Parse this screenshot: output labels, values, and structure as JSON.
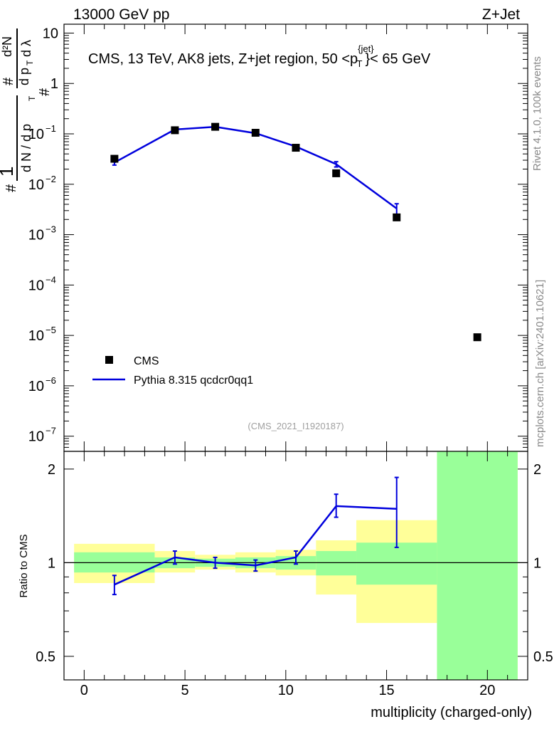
{
  "header": {
    "energy_label": "13000 GeV pp",
    "process_label": "Z+Jet"
  },
  "side_labels": {
    "rivet": "Rivet 4.1.0,  100k events",
    "mcplots": "mcplots.cern.ch [arXiv:2401.10621]"
  },
  "reference_label": "(CMS_2021_I1920187)",
  "colors": {
    "data": "#000000",
    "mc": "#0000dd",
    "band_inner": "#99ff99",
    "band_outer": "#ffff99"
  },
  "chart_data": [
    {
      "type": "scatter",
      "panel": "main",
      "title": {
        "prefix": "CMS, 13 TeV, AK8 jets, Z+jet region, 50 <p",
        "sup": "{jet}",
        "sub": "T",
        "suffix": "}< 65 GeV"
      },
      "ylabel": "1/(dN/dpT) d²N/dpT dλ",
      "ylabel_parts": {
        "one": "1",
        "hash": "#",
        "dN": "d N / d p",
        "T": "T",
        "d2N": "d²N",
        "dpT": "d p",
        "dl": "d λ"
      },
      "yscale": "log",
      "ylim": [
        5e-08,
        15
      ],
      "xlim": [
        -1,
        22
      ],
      "yticks": [
        {
          "v": 10,
          "label": "10"
        },
        {
          "v": 1,
          "label": "1"
        },
        {
          "v": 0.1,
          "label": "10",
          "exp": "−1"
        },
        {
          "v": 0.01,
          "label": "10",
          "exp": "−2"
        },
        {
          "v": 0.001,
          "label": "10",
          "exp": "−3"
        },
        {
          "v": 0.0001,
          "label": "10",
          "exp": "−4"
        },
        {
          "v": 1e-05,
          "label": "10",
          "exp": "−5"
        },
        {
          "v": 1e-06,
          "label": "10",
          "exp": "−6"
        },
        {
          "v": 1e-07,
          "label": "10",
          "exp": "−7"
        }
      ],
      "legend": {
        "placement": "bottom-left",
        "entries": [
          "CMS",
          "Pythia 8.315 qcdcr0qq1"
        ]
      },
      "series": [
        {
          "name": "CMS",
          "style": "marker",
          "x": [
            1.5,
            4.5,
            6.5,
            8.5,
            10.5,
            12.5,
            15.5,
            19.5
          ],
          "y": [
            0.032,
            0.118,
            0.138,
            0.105,
            0.053,
            0.0165,
            0.0022,
            9.2e-06
          ]
        },
        {
          "name": "Pythia 8.315 qcdcr0qq1",
          "style": "line",
          "x": [
            1.5,
            4.5,
            6.5,
            8.5,
            10.5,
            12.5,
            15.5
          ],
          "y": [
            0.027,
            0.122,
            0.138,
            0.103,
            0.056,
            0.025,
            0.0033
          ],
          "err": [
            0.003,
            0.004,
            0.004,
            0.004,
            0.003,
            0.003,
            0.0008
          ]
        }
      ]
    },
    {
      "type": "line",
      "panel": "ratio",
      "ylabel": "Ratio to CMS",
      "xlabel": "multiplicity (charged-only)",
      "yscale": "log",
      "ylim": [
        0.42,
        2.28
      ],
      "xlim": [
        -1,
        22
      ],
      "xticks": [
        0,
        5,
        10,
        15,
        20
      ],
      "yticks": [
        {
          "v": 0.5,
          "label": "0.5"
        },
        {
          "v": 1,
          "label": "1"
        },
        {
          "v": 2,
          "label": "2"
        }
      ],
      "bands": [
        {
          "x0": -0.5,
          "x1": 3.5,
          "inner": [
            0.93,
            1.08
          ],
          "outer": [
            0.86,
            1.15
          ]
        },
        {
          "x0": 3.5,
          "x1": 5.5,
          "inner": [
            0.96,
            1.04
          ],
          "outer": [
            0.93,
            1.09
          ]
        },
        {
          "x0": 5.5,
          "x1": 7.5,
          "inner": [
            0.97,
            1.03
          ],
          "outer": [
            0.95,
            1.06
          ]
        },
        {
          "x0": 7.5,
          "x1": 9.5,
          "inner": [
            0.96,
            1.04
          ],
          "outer": [
            0.93,
            1.08
          ]
        },
        {
          "x0": 9.5,
          "x1": 11.5,
          "inner": [
            0.95,
            1.05
          ],
          "outer": [
            0.91,
            1.1
          ]
        },
        {
          "x0": 11.5,
          "x1": 13.5,
          "inner": [
            0.91,
            1.09
          ],
          "outer": [
            0.79,
            1.18
          ]
        },
        {
          "x0": 13.5,
          "x1": 17.5,
          "inner": [
            0.85,
            1.16
          ],
          "outer": [
            0.64,
            1.37
          ]
        },
        {
          "x0": 17.5,
          "x1": 21.5,
          "inner": [
            0.42,
            2.28
          ],
          "outer": [
            0.42,
            2.28
          ]
        }
      ],
      "series": [
        {
          "name": "Pythia 8.315 qcdcr0qq1",
          "x": [
            1.5,
            4.5,
            6.5,
            8.5,
            10.5,
            12.5,
            15.5
          ],
          "y": [
            0.85,
            1.04,
            1.0,
            0.98,
            1.04,
            1.52,
            1.49
          ],
          "err_low": [
            0.06,
            0.05,
            0.04,
            0.04,
            0.05,
            0.12,
            0.37
          ],
          "err_high": [
            0.06,
            0.05,
            0.04,
            0.04,
            0.05,
            0.14,
            0.39
          ]
        }
      ]
    }
  ]
}
